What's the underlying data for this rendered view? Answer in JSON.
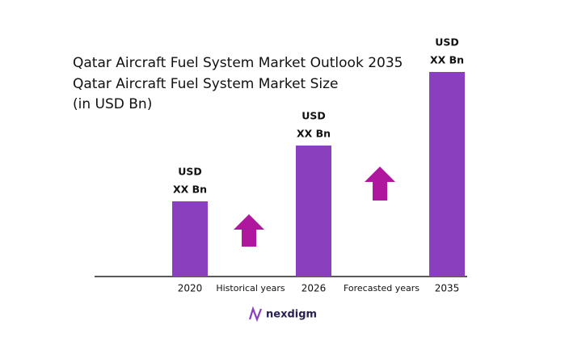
{
  "chart_data": {
    "type": "bar",
    "title": "Qatar Aircraft Fuel System Market Outlook 2035",
    "subtitle": [
      "Qatar Aircraft Fuel System Market Size",
      "(in USD Bn)"
    ],
    "categories": [
      "2020",
      "2026",
      "2035"
    ],
    "values": [
      93,
      162,
      253
    ],
    "value_labels": [
      [
        "USD",
        "XX Bn"
      ],
      [
        "USD",
        "XX Bn"
      ],
      [
        "USD",
        "XX Bn"
      ]
    ],
    "annotations": [
      "Historical years",
      "Forecasted years"
    ],
    "color": "#8a3fbf",
    "ylim": [
      0,
      260
    ]
  },
  "logo": "nexdigm"
}
